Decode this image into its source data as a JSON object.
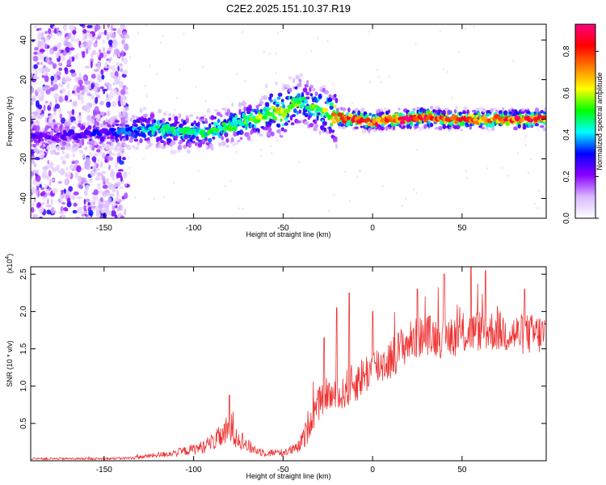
{
  "title": "C2E2.2025.151.10.37.R19",
  "chart_data": [
    {
      "type": "heatmap",
      "xlabel": "Height of straight line (km)",
      "ylabel": "Frequency (Hz)",
      "xlim": [
        -191,
        97
      ],
      "ylim": [
        -50,
        48
      ],
      "xticks": [
        -150,
        -100,
        -50,
        0,
        50
      ],
      "xtick_labels": [
        "-150",
        "-100",
        "-50",
        "0",
        "50"
      ],
      "yticks": [
        -40,
        -20,
        0,
        20,
        40
      ],
      "ytick_labels": [
        "-40",
        "-20",
        "0",
        "20",
        "40"
      ],
      "colorbar": {
        "label": "Normalized spectral amplitude",
        "range": [
          0.0,
          0.93
        ],
        "ticks": [
          0.0,
          0.2,
          0.4,
          0.6,
          0.8
        ],
        "tick_labels": [
          "0.0",
          "0.2",
          "0.4",
          "0.6",
          "0.8"
        ],
        "colormap": [
          "#ffffff",
          "#d8b8ff",
          "#8a00ff",
          "#0000ff",
          "#00ffff",
          "#00ff00",
          "#ffff00",
          "#ff8000",
          "#ff0000",
          "#ff0080"
        ]
      },
      "ridge": {
        "x": [
          -191,
          -170,
          -150,
          -140,
          -130,
          -120,
          -110,
          -100,
          -90,
          -80,
          -70,
          -60,
          -55,
          -50,
          -45,
          -40,
          -35,
          -30,
          -25,
          -20,
          -10,
          0,
          10,
          20,
          30,
          40,
          50,
          60,
          70,
          80,
          90,
          97
        ],
        "freq": [
          -9,
          -8,
          -7,
          -6,
          -5,
          -5,
          -6,
          -7,
          -6,
          -3,
          -1,
          2,
          4,
          3,
          7,
          9,
          7,
          5,
          3,
          1,
          0,
          -1,
          0,
          0,
          1,
          0,
          0,
          0,
          0,
          0,
          0,
          0
        ],
        "amplitude": [
          0.25,
          0.25,
          0.3,
          0.35,
          0.4,
          0.45,
          0.45,
          0.45,
          0.5,
          0.5,
          0.55,
          0.6,
          0.6,
          0.65,
          0.6,
          0.5,
          0.5,
          0.55,
          0.6,
          0.8,
          0.85,
          0.85,
          0.85,
          0.9,
          0.9,
          0.85,
          0.85,
          0.8,
          0.8,
          0.85,
          0.85,
          0.8
        ]
      }
    },
    {
      "type": "line",
      "xlabel": "Height of straight line (km)",
      "ylabel": "SNR (10 * v/v)",
      "y_multiplier": "(x10",
      "y_multiplier_exp": "4",
      "y_multiplier_close": ")",
      "xlim": [
        -191,
        97
      ],
      "ylim": [
        0,
        2.6
      ],
      "xticks": [
        -150,
        -100,
        -50,
        0,
        50
      ],
      "xtick_labels": [
        "-150",
        "-100",
        "-50",
        "0",
        "50"
      ],
      "yticks": [
        0.5,
        1.0,
        1.5,
        2.0,
        2.5
      ],
      "ytick_labels": [
        "0.5",
        "1.0",
        "1.5",
        "2.0",
        "2.5"
      ],
      "color": "#ee3333",
      "envelope": {
        "x": [
          -191,
          -150,
          -135,
          -125,
          -115,
          -105,
          -95,
          -88,
          -82,
          -78,
          -75,
          -70,
          -65,
          -60,
          -50,
          -42,
          -38,
          -35,
          -30,
          -26,
          -22,
          -18,
          -15,
          -10,
          -5,
          0,
          5,
          10,
          15,
          20,
          25,
          30,
          40,
          50,
          60,
          70,
          80,
          90,
          97
        ],
        "y": [
          0.03,
          0.03,
          0.04,
          0.07,
          0.1,
          0.14,
          0.2,
          0.3,
          0.4,
          0.5,
          0.35,
          0.22,
          0.15,
          0.12,
          0.12,
          0.18,
          0.35,
          0.6,
          0.8,
          0.95,
          0.9,
          0.88,
          1.0,
          1.1,
          1.2,
          1.3,
          1.35,
          1.42,
          1.55,
          1.65,
          1.7,
          1.75,
          1.7,
          1.75,
          1.8,
          1.8,
          1.75,
          1.75,
          1.75
        ]
      },
      "peaks": [
        {
          "x": -80,
          "y": 0.88
        },
        {
          "x": -27,
          "y": 1.65
        },
        {
          "x": -20,
          "y": 2.05
        },
        {
          "x": -13,
          "y": 2.25
        },
        {
          "x": 0,
          "y": 2.0
        },
        {
          "x": 25,
          "y": 2.3
        },
        {
          "x": 40,
          "y": 2.5
        },
        {
          "x": 55,
          "y": 2.6
        },
        {
          "x": 63,
          "y": 2.55
        },
        {
          "x": 85,
          "y": 2.3
        }
      ]
    }
  ]
}
